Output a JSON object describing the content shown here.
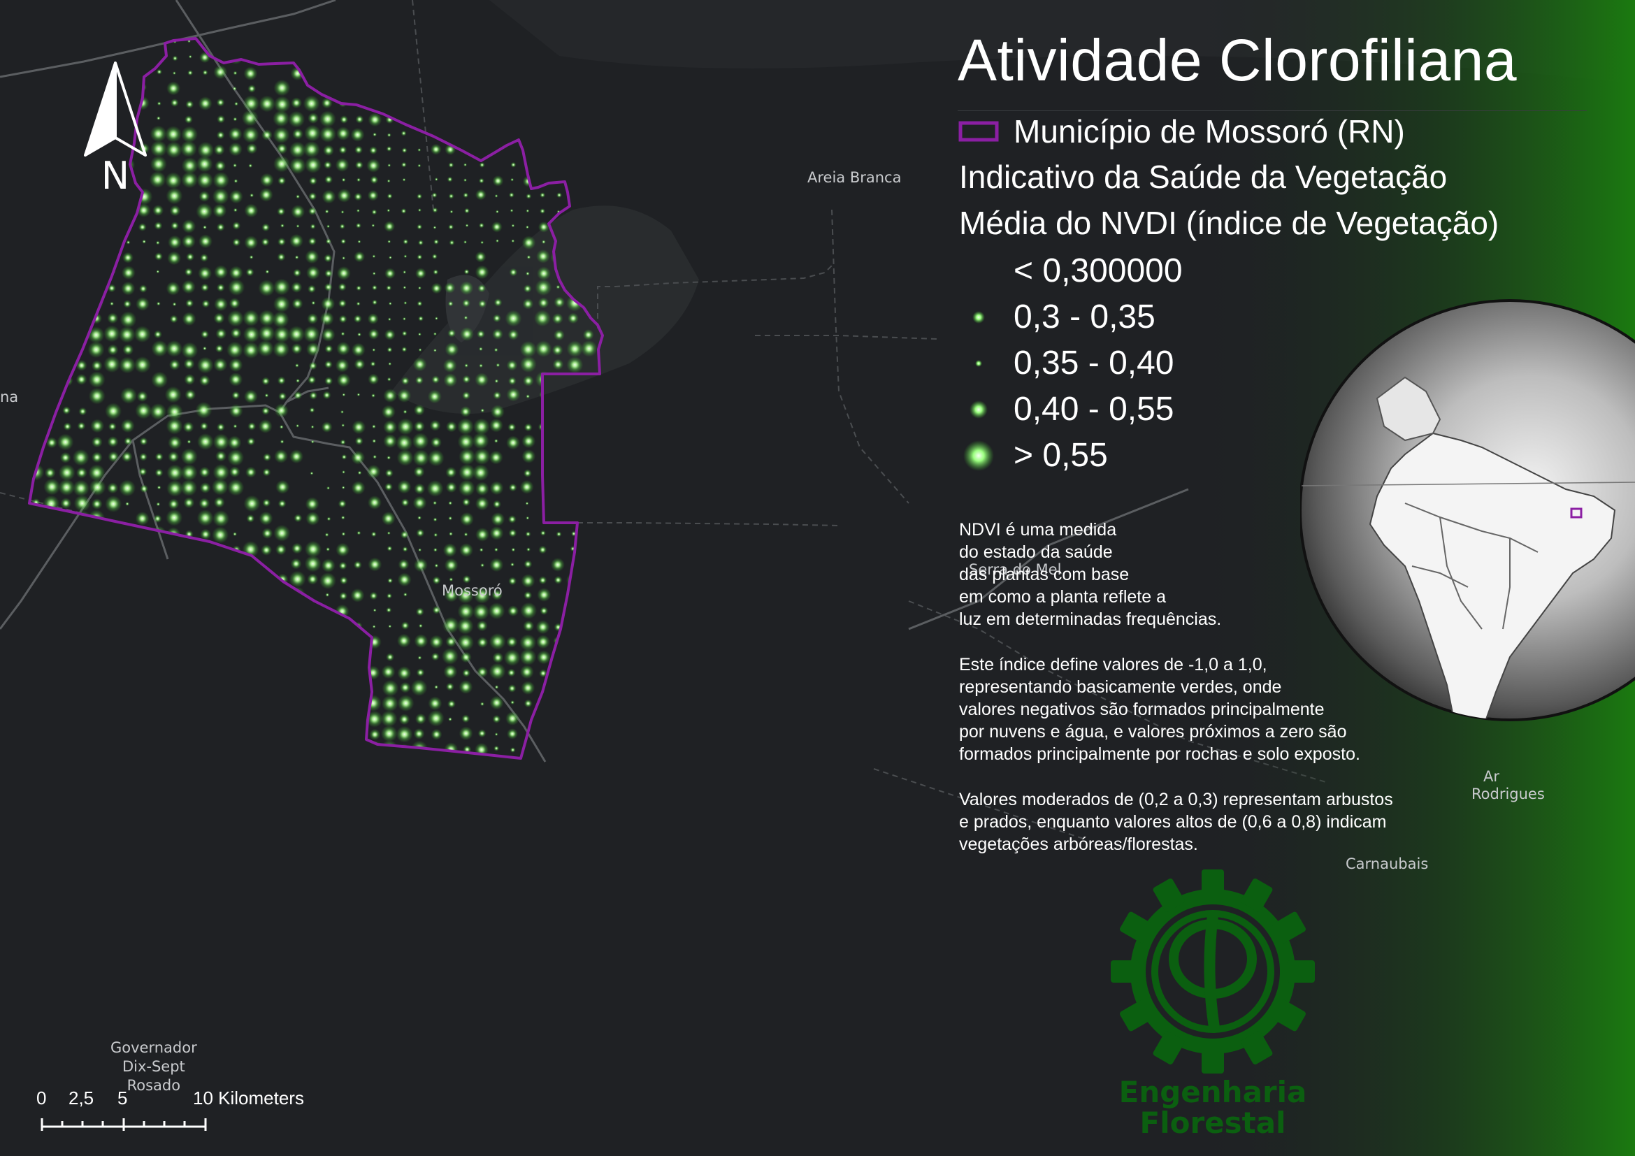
{
  "map": {
    "title": "Atividade Clorofiliana",
    "legend": {
      "boundary_label": "Município de Mossoró (RN)",
      "subtitle_1": "Indicativo da Saúde da Vegetação",
      "subtitle_2": "Média do NVDI (índice de Vegetação)",
      "classes": [
        {
          "label": "< 0,300000",
          "symbol": "none"
        },
        {
          "label": "0,3 - 0,35",
          "symbol": "small-dot"
        },
        {
          "label": "0,35 - 0,40",
          "symbol": "tiny-dot"
        },
        {
          "label": "0,40 - 0,55",
          "symbol": "medium-dot"
        },
        {
          "label": "> 0,55",
          "symbol": "large-glow-dot"
        }
      ]
    },
    "description": {
      "p1": "NDVI é uma medida\ndo estado da saúde\ndas plantas com base\nem como a planta reflete a\nluz em determinadas frequências.",
      "p2": "Este índice define valores de -1,0 a 1,0,\nrepresentando basicamente verdes, onde\nvalores negativos são formados principalmente\npor nuvens e água, e valores próximos a zero são\nformados principalmente por rochas e solo exposto.",
      "p3": "Valores moderados de (0,2 a 0,3) representam arbustos\ne prados, enquanto valores altos de (0,6 a 0,8) indicam\nvegetações arbóreas/florestas."
    },
    "north_arrow": "N",
    "scale": {
      "labels": [
        "0",
        "2,5",
        "5",
        "10 Kilometers"
      ]
    },
    "places": {
      "areia_branca": "Areia Branca",
      "mossoro": "Mossoró",
      "serra_do_mel": "Serra do Mel",
      "governador": "Governador\nDix-Sept\nRosado",
      "carnaubais": "Carnaubais",
      "rodrigues": "Rodrigues",
      "rodrigues_partial": "Ar",
      "left_partial": "na"
    },
    "logo": {
      "line1": "Engenharia",
      "line2": "Florestal",
      "symbol": "phi-gear-icon"
    },
    "colors": {
      "boundary": "#8b1fa3",
      "dot_glow": "#7cff6a",
      "dot_core": "#e8ffe0",
      "background": "#1f2124",
      "gradient_green": "#1b7a10",
      "logo_green": "#0b5f10"
    }
  }
}
